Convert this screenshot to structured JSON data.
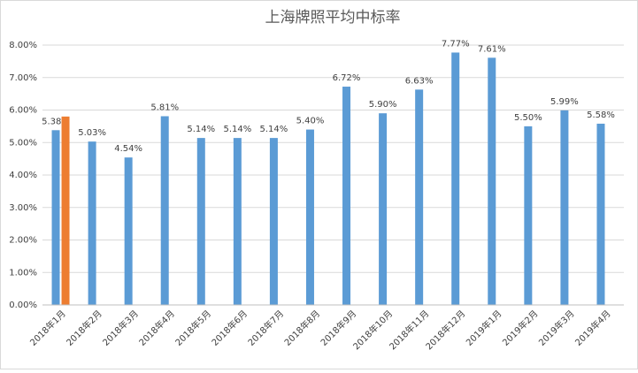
{
  "chart_data": {
    "type": "bar",
    "title": "上海牌照平均中标率",
    "categories": [
      "2018年1月",
      "2018年2月",
      "2018年3月",
      "2018年4月",
      "2018年5月",
      "2018年6月",
      "2018年7月",
      "2018年8月",
      "2018年9月",
      "2018年10月",
      "2018年11月",
      "2018年12月",
      "2019年1月",
      "2019年2月",
      "2019年3月",
      "2019年4月"
    ],
    "series": [
      {
        "color": "#5b9bd5",
        "values": [
          5.38,
          5.03,
          4.54,
          5.81,
          5.14,
          5.14,
          5.14,
          5.4,
          6.72,
          5.9,
          6.63,
          7.77,
          7.61,
          5.5,
          5.99,
          5.58
        ],
        "value_labels": [
          "5.38%",
          "5.03%",
          "4.54%",
          "5.81%",
          "5.14%",
          "5.14%",
          "5.14%",
          "5.40%",
          "6.72%",
          "5.90%",
          "6.63%",
          "7.77%",
          "7.61%",
          "5.50%",
          "5.99%",
          "5.58%"
        ]
      },
      {
        "color": "#ed7d31",
        "values": [
          5.8,
          null,
          null,
          null,
          null,
          null,
          null,
          null,
          null,
          null,
          null,
          null,
          null,
          null,
          null,
          null
        ]
      }
    ],
    "ylim": [
      0,
      8
    ],
    "yticks": [
      {
        "value": 0,
        "label": "0.00%"
      },
      {
        "value": 1,
        "label": "1.00%"
      },
      {
        "value": 2,
        "label": "2.00%"
      },
      {
        "value": 3,
        "label": "3.00%"
      },
      {
        "value": 4,
        "label": "4.00%"
      },
      {
        "value": 5,
        "label": "5.00%"
      },
      {
        "value": 6,
        "label": "6.00%"
      },
      {
        "value": 7,
        "label": "7.00%"
      },
      {
        "value": 8,
        "label": "8.00%"
      }
    ],
    "grid": true
  }
}
